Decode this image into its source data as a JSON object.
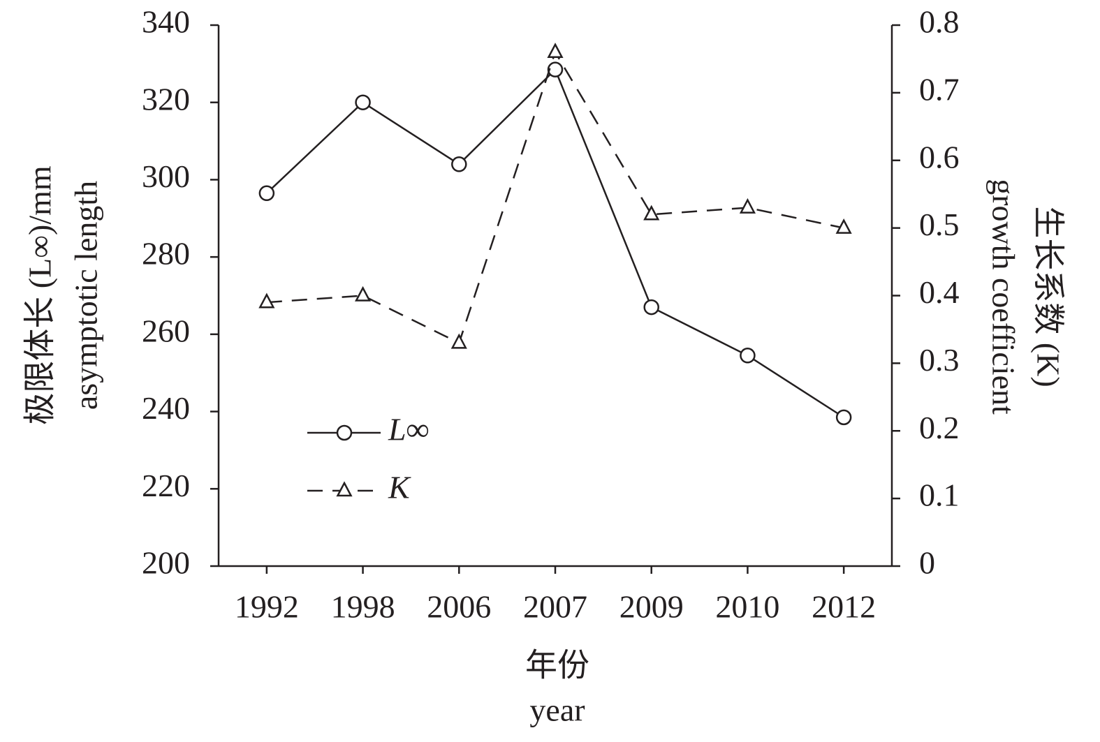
{
  "chart_data": {
    "type": "line",
    "categories": [
      "1992",
      "1998",
      "2006",
      "2007",
      "2009",
      "2010",
      "2012"
    ],
    "x_label": [
      "年份",
      "year"
    ],
    "y_label": [
      "极限体长 (L∞)/mm",
      "asymptotic length"
    ],
    "y2_label": [
      "生长系数 (K)",
      "growth coefficient"
    ],
    "ylim": [
      200,
      340
    ],
    "yticks": [
      200,
      220,
      240,
      260,
      280,
      300,
      320,
      340
    ],
    "y2lim": [
      0,
      0.8
    ],
    "y2ticks": [
      0,
      0.1,
      0.2,
      0.3,
      0.4,
      0.5,
      0.6,
      0.7,
      0.8
    ],
    "series": [
      {
        "name": "L∞",
        "color": "#231f20",
        "line_style": "solid",
        "marker": "circle",
        "values": [
          296.5,
          320,
          304,
          328.5,
          267,
          254.5,
          238.5
        ]
      },
      {
        "name": "K",
        "color": "#231f20",
        "line_style": "dashed",
        "marker": "triangle",
        "axis": "y2",
        "values": [
          0.39,
          0.4,
          0.33,
          0.76,
          0.52,
          0.53,
          0.5
        ]
      }
    ]
  }
}
